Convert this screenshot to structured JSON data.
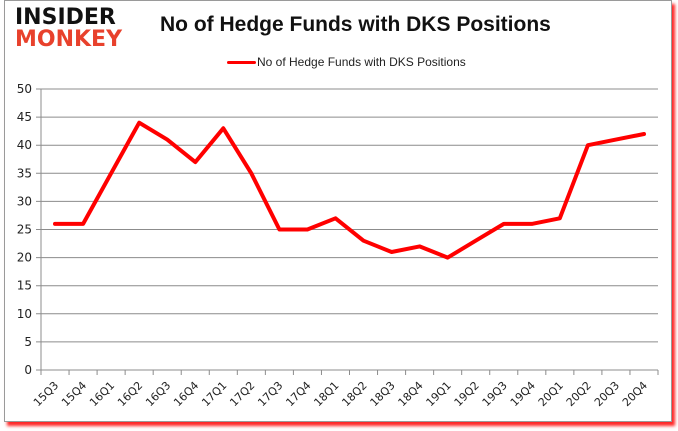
{
  "logo": {
    "line1": "INSIDER",
    "line2": "MONKEY"
  },
  "colors": {
    "series": "#ff0000",
    "logo_accent": "#e8412c",
    "grid": "#8c8c8c"
  },
  "chart_data": {
    "type": "line",
    "title": "No of Hedge Funds with DKS Positions",
    "xlabel": "",
    "ylabel": "",
    "ylim": [
      0,
      50
    ],
    "yticks": [
      0,
      5,
      10,
      15,
      20,
      25,
      30,
      35,
      40,
      45,
      50
    ],
    "grid": true,
    "legend_position": "top",
    "categories": [
      "15Q3",
      "15Q4",
      "16Q1",
      "16Q2",
      "16Q3",
      "16Q4",
      "17Q1",
      "17Q2",
      "17Q3",
      "17Q4",
      "18Q1",
      "18Q2",
      "18Q3",
      "18Q4",
      "19Q1",
      "19Q2",
      "19Q3",
      "19Q4",
      "20Q1",
      "20Q2",
      "20Q3",
      "20Q4"
    ],
    "series": [
      {
        "name": "No of Hedge Funds with DKS Positions",
        "values": [
          26,
          26,
          35,
          44,
          41,
          37,
          43,
          35,
          25,
          25,
          27,
          23,
          21,
          22,
          20,
          23,
          26,
          26,
          27,
          40,
          41,
          42
        ]
      }
    ]
  }
}
